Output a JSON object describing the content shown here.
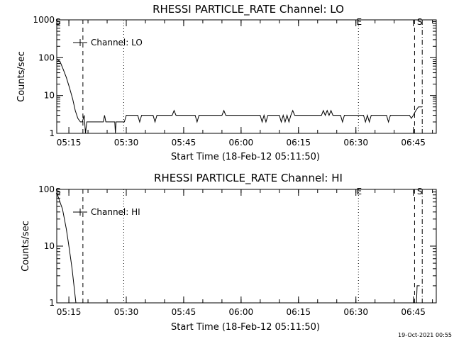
{
  "footer_timestamp": "19-Oct-2021 00:55",
  "chart_data": [
    {
      "type": "line",
      "title": "RHESSI PARTICLE_RATE Channel: LO",
      "xlabel": "Start Time (18-Feb-12 05:11:50)",
      "ylabel": "Counts/sec",
      "yscale": "log",
      "ylim": [
        1,
        1000
      ],
      "yticks": [
        "1",
        "10",
        "100",
        "1000"
      ],
      "xlim": [
        "05:11:50",
        "06:51:00"
      ],
      "xticks": [
        "05:15",
        "05:30",
        "05:45",
        "06:00",
        "06:15",
        "06:30",
        "06:45"
      ],
      "grid": false,
      "legend": {
        "label": "Channel: LO",
        "position": "top-left"
      },
      "markers": [
        {
          "label": "S",
          "time": "05:12:00",
          "style": "none"
        },
        {
          "time": "05:18:40",
          "style": "dashed"
        },
        {
          "time": "05:29:20",
          "style": "dotted"
        },
        {
          "label": "E",
          "time": "06:30:40",
          "style": "dotted"
        },
        {
          "time": "06:45:20",
          "style": "dashed"
        },
        {
          "label": "S",
          "time": "06:46:30",
          "style": "none"
        },
        {
          "time": "06:47:20",
          "style": "dashdot"
        }
      ],
      "series": [
        {
          "points": [
            [
              "05:11:50",
              90
            ],
            [
              "05:12:40",
              80
            ],
            [
              "05:13:30",
              50
            ],
            [
              "05:14:20",
              30
            ],
            [
              "05:15:10",
              16
            ],
            [
              "05:16:00",
              8
            ],
            [
              "05:16:40",
              4
            ],
            [
              "05:17:20",
              2.5
            ],
            [
              "05:18:00",
              2
            ],
            [
              "05:18:30",
              2
            ],
            [
              "05:19:00",
              3
            ],
            [
              "05:19:20",
              1
            ],
            [
              "05:19:40",
              2
            ],
            [
              "05:24:00",
              2
            ],
            [
              "05:24:20",
              3
            ],
            [
              "05:24:40",
              2
            ],
            [
              "05:27:00",
              2
            ],
            [
              "05:27:10",
              1
            ],
            [
              "05:27:20",
              2
            ],
            [
              "05:29:30",
              2
            ],
            [
              "05:30:00",
              3
            ],
            [
              "05:33:00",
              3
            ],
            [
              "05:33:30",
              2
            ],
            [
              "05:34:00",
              3
            ],
            [
              "05:37:00",
              3
            ],
            [
              "05:37:30",
              2
            ],
            [
              "05:38:00",
              3
            ],
            [
              "05:42:00",
              3
            ],
            [
              "05:42:30",
              4
            ],
            [
              "05:43:00",
              3
            ],
            [
              "05:48:00",
              3
            ],
            [
              "05:48:30",
              2
            ],
            [
              "05:49:00",
              3
            ],
            [
              "05:55:00",
              3
            ],
            [
              "05:55:30",
              4
            ],
            [
              "05:56:00",
              3
            ],
            [
              "06:05:00",
              3
            ],
            [
              "06:05:30",
              2
            ],
            [
              "06:06:00",
              3
            ],
            [
              "06:06:30",
              2
            ],
            [
              "06:07:00",
              3
            ],
            [
              "06:10:00",
              3
            ],
            [
              "06:10:30",
              2
            ],
            [
              "06:11:00",
              3
            ],
            [
              "06:11:30",
              2
            ],
            [
              "06:12:00",
              3
            ],
            [
              "06:12:30",
              2
            ],
            [
              "06:13:00",
              3
            ],
            [
              "06:13:30",
              4
            ],
            [
              "06:14:00",
              3
            ],
            [
              "06:21:00",
              3
            ],
            [
              "06:21:30",
              4
            ],
            [
              "06:22:00",
              3
            ],
            [
              "06:22:30",
              4
            ],
            [
              "06:23:00",
              3
            ],
            [
              "06:23:30",
              4
            ],
            [
              "06:24:00",
              3
            ],
            [
              "06:26:00",
              3
            ],
            [
              "06:26:30",
              2
            ],
            [
              "06:27:00",
              3
            ],
            [
              "06:32:00",
              3
            ],
            [
              "06:32:30",
              2
            ],
            [
              "06:33:00",
              3
            ],
            [
              "06:33:30",
              2
            ],
            [
              "06:34:00",
              3
            ],
            [
              "06:38:00",
              3
            ],
            [
              "06:38:30",
              2
            ],
            [
              "06:39:00",
              3
            ],
            [
              "06:44:00",
              3
            ],
            [
              "06:44:30",
              2.5
            ],
            [
              "06:45:00",
              3
            ],
            [
              "06:45:40",
              4
            ],
            [
              "06:46:20",
              5
            ],
            [
              "06:47:20",
              5
            ]
          ]
        }
      ]
    },
    {
      "type": "line",
      "title": "RHESSI PARTICLE_RATE Channel: HI",
      "xlabel": "Start Time (18-Feb-12 05:11:50)",
      "ylabel": "Counts/sec",
      "yscale": "log",
      "ylim": [
        1,
        100
      ],
      "yticks": [
        "1",
        "10",
        "100"
      ],
      "xlim": [
        "05:11:50",
        "06:51:00"
      ],
      "xticks": [
        "05:15",
        "05:30",
        "05:45",
        "06:00",
        "06:15",
        "06:30",
        "06:45"
      ],
      "grid": false,
      "legend": {
        "label": "Channel: HI",
        "position": "top-left"
      },
      "markers": [
        {
          "label": "S",
          "time": "05:12:00",
          "style": "none"
        },
        {
          "time": "05:18:40",
          "style": "dashed"
        },
        {
          "time": "05:29:20",
          "style": "dotted"
        },
        {
          "label": "E",
          "time": "06:30:40",
          "style": "dotted"
        },
        {
          "time": "06:45:20",
          "style": "dashed"
        },
        {
          "label": "S",
          "time": "06:46:30",
          "style": "none"
        },
        {
          "time": "06:47:20",
          "style": "dashdot"
        }
      ],
      "series": [
        {
          "points": [
            [
              "05:11:50",
              90
            ],
            [
              "05:12:10",
              75
            ],
            [
              "05:12:40",
              60
            ],
            [
              "05:13:20",
              45
            ],
            [
              "05:13:50",
              30
            ],
            [
              "05:14:20",
              20
            ],
            [
              "05:14:50",
              12
            ],
            [
              "05:15:20",
              7
            ],
            [
              "05:15:50",
              4
            ],
            [
              "05:16:20",
              2
            ],
            [
              "05:16:50",
              1
            ]
          ]
        },
        {
          "points": [
            [
              "06:45:50",
              1
            ],
            [
              "06:46:00",
              2
            ],
            [
              "06:46:40",
              2
            ]
          ]
        }
      ]
    }
  ]
}
